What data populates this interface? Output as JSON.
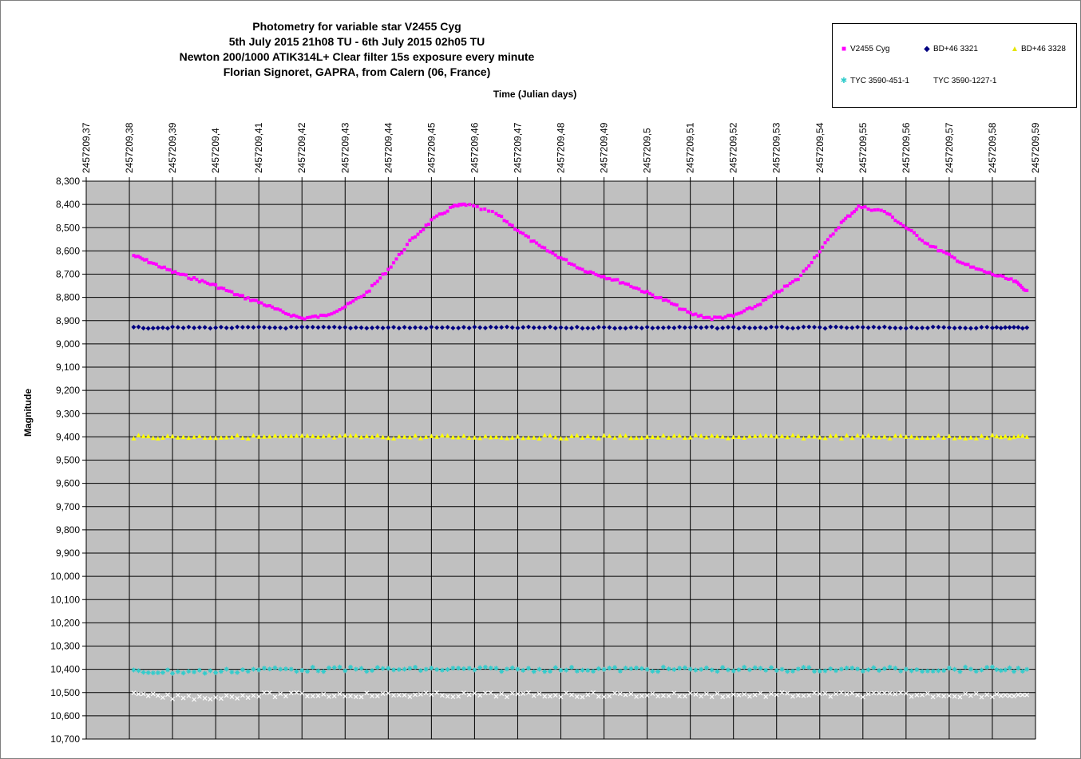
{
  "chart_data": {
    "type": "scatter",
    "title_lines": [
      "Photometry for variable star V2455 Cyg",
      "5th July 2015 21h08 TU - 6th July 2015 02h05 TU",
      "Newton 200/1000 ATIK314L+ Clear filter 15s exposure every minute",
      "Florian Signoret, GAPRA, from Calern (06, France)"
    ],
    "xlabel": "Time (Julian days)",
    "ylabel": "Magnitude",
    "xlim": [
      2457209.37,
      2457209.59
    ],
    "ylim": [
      8.3,
      10.7
    ],
    "y_reversed": true,
    "x_axis_position": "top",
    "grid": true,
    "plot_background": "#c0c0c0",
    "legend_position": "top-right",
    "x_ticks": [
      "2457209,37",
      "2457209,38",
      "2457209,39",
      "2457209,4",
      "2457209,41",
      "2457209,42",
      "2457209,43",
      "2457209,44",
      "2457209,45",
      "2457209,46",
      "2457209,47",
      "2457209,48",
      "2457209,49",
      "2457209,5",
      "2457209,51",
      "2457209,52",
      "2457209,53",
      "2457209,54",
      "2457209,55",
      "2457209,56",
      "2457209,57",
      "2457209,58",
      "2457209,59"
    ],
    "y_ticks": [
      "8,300",
      "8,400",
      "8,500",
      "8,600",
      "8,700",
      "8,800",
      "8,900",
      "9,000",
      "9,100",
      "9,200",
      "9,300",
      "9,400",
      "9,500",
      "9,600",
      "9,700",
      "9,800",
      "9,900",
      "10,000",
      "10,100",
      "10,200",
      "10,300",
      "10,400",
      "10,500",
      "10,600",
      "10,700"
    ],
    "series": [
      {
        "name": "V2455 Cyg",
        "marker": "square",
        "color": "#ff00ff",
        "x": [
          2457209.381,
          2457209.385,
          2457209.39,
          2457209.395,
          2457209.4,
          2457209.405,
          2457209.41,
          2457209.415,
          2457209.42,
          2457209.425,
          2457209.43,
          2457209.435,
          2457209.44,
          2457209.445,
          2457209.45,
          2457209.455,
          2457209.458,
          2457209.465,
          2457209.47,
          2457209.475,
          2457209.48,
          2457209.485,
          2457209.49,
          2457209.495,
          2457209.5,
          2457209.505,
          2457209.51,
          2457209.515,
          2457209.52,
          2457209.525,
          2457209.53,
          2457209.535,
          2457209.54,
          2457209.545,
          2457209.549,
          2457209.555,
          2457209.56,
          2457209.565,
          2457209.57,
          2457209.575,
          2457209.58,
          2457209.585,
          2457209.588
        ],
        "y": [
          8.62,
          8.65,
          8.69,
          8.72,
          8.75,
          8.79,
          8.82,
          8.86,
          8.89,
          8.88,
          8.84,
          8.78,
          8.68,
          8.56,
          8.47,
          8.41,
          8.4,
          8.44,
          8.51,
          8.58,
          8.63,
          8.68,
          8.71,
          8.74,
          8.78,
          8.82,
          8.87,
          8.89,
          8.88,
          8.84,
          8.78,
          8.72,
          8.6,
          8.48,
          8.41,
          8.43,
          8.5,
          8.57,
          8.62,
          8.67,
          8.7,
          8.73,
          8.77
        ]
      },
      {
        "name": "BD+46 3321",
        "marker": "diamond",
        "color": "#000080",
        "x": [
          2457209.381,
          2457209.39,
          2457209.4,
          2457209.41,
          2457209.42,
          2457209.43,
          2457209.44,
          2457209.45,
          2457209.46,
          2457209.47,
          2457209.48,
          2457209.49,
          2457209.5,
          2457209.51,
          2457209.52,
          2457209.53,
          2457209.54,
          2457209.55,
          2457209.56,
          2457209.57,
          2457209.58,
          2457209.588
        ],
        "y": [
          8.93,
          8.93,
          8.93,
          8.93,
          8.93,
          8.93,
          8.93,
          8.93,
          8.93,
          8.93,
          8.93,
          8.93,
          8.93,
          8.93,
          8.93,
          8.93,
          8.93,
          8.93,
          8.93,
          8.93,
          8.93,
          8.93
        ]
      },
      {
        "name": "BD+46 3328",
        "marker": "triangle",
        "color": "#ffff00",
        "x": [
          2457209.381,
          2457209.39,
          2457209.4,
          2457209.41,
          2457209.42,
          2457209.43,
          2457209.44,
          2457209.45,
          2457209.46,
          2457209.47,
          2457209.48,
          2457209.49,
          2457209.5,
          2457209.51,
          2457209.52,
          2457209.53,
          2457209.54,
          2457209.55,
          2457209.56,
          2457209.57,
          2457209.58,
          2457209.588
        ],
        "y": [
          9.4,
          9.4,
          9.4,
          9.4,
          9.4,
          9.4,
          9.4,
          9.4,
          9.4,
          9.4,
          9.4,
          9.4,
          9.4,
          9.4,
          9.4,
          9.4,
          9.4,
          9.4,
          9.4,
          9.4,
          9.4,
          9.4
        ]
      },
      {
        "name": "TYC 3590-451-1",
        "marker": "star",
        "color": "#33cccc",
        "x": [
          2457209.381,
          2457209.39,
          2457209.4,
          2457209.41,
          2457209.42,
          2457209.43,
          2457209.44,
          2457209.45,
          2457209.46,
          2457209.47,
          2457209.48,
          2457209.49,
          2457209.5,
          2457209.51,
          2457209.52,
          2457209.53,
          2457209.54,
          2457209.55,
          2457209.56,
          2457209.57,
          2457209.58,
          2457209.588
        ],
        "y": [
          10.41,
          10.41,
          10.41,
          10.4,
          10.4,
          10.4,
          10.4,
          10.4,
          10.4,
          10.4,
          10.4,
          10.4,
          10.4,
          10.4,
          10.4,
          10.4,
          10.4,
          10.4,
          10.4,
          10.4,
          10.4,
          10.4
        ]
      },
      {
        "name": "TYC 3590-1227-1",
        "marker": "cross",
        "color": "#ffffff",
        "x": [
          2457209.381,
          2457209.39,
          2457209.4,
          2457209.41,
          2457209.42,
          2457209.43,
          2457209.44,
          2457209.45,
          2457209.46,
          2457209.47,
          2457209.48,
          2457209.49,
          2457209.5,
          2457209.51,
          2457209.52,
          2457209.53,
          2457209.54,
          2457209.55,
          2457209.56,
          2457209.57,
          2457209.58,
          2457209.588
        ],
        "y": [
          10.51,
          10.52,
          10.52,
          10.51,
          10.51,
          10.51,
          10.51,
          10.51,
          10.51,
          10.51,
          10.51,
          10.51,
          10.51,
          10.51,
          10.51,
          10.51,
          10.51,
          10.51,
          10.51,
          10.51,
          10.51,
          10.51
        ]
      }
    ]
  }
}
